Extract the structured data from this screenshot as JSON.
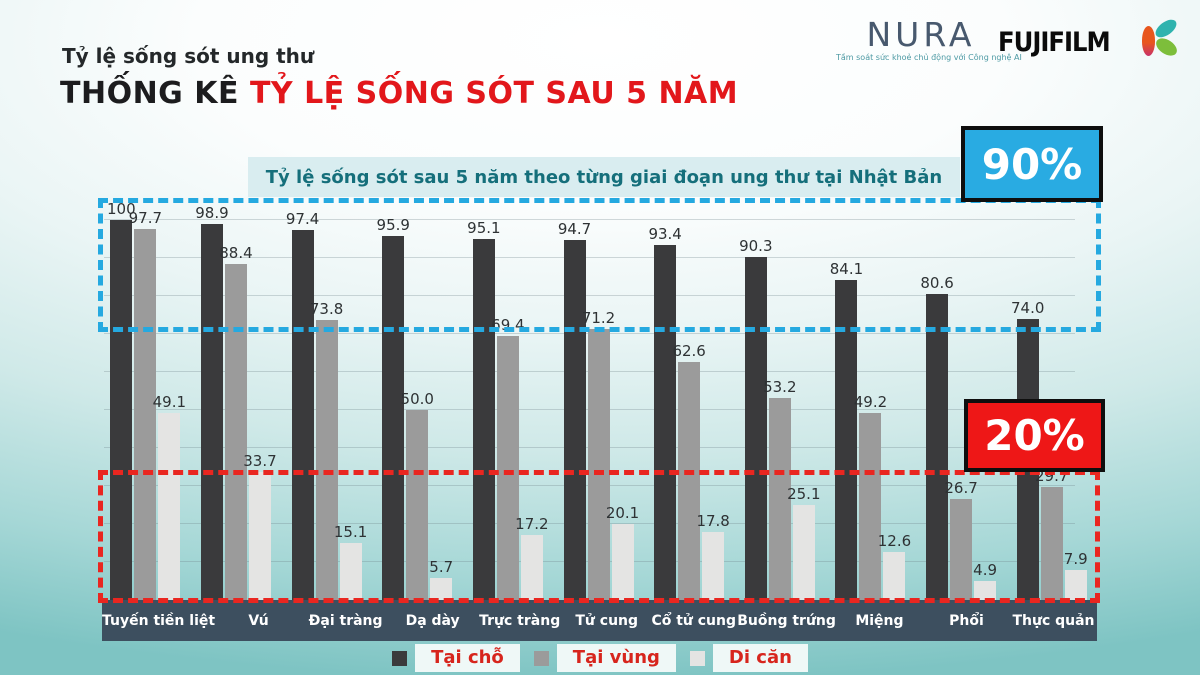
{
  "header": {
    "subtitle": "Tỷ lệ sống sót ung thư",
    "title_prefix": "THỐNG KÊ ",
    "title_highlight": "TỶ LỆ SỐNG SÓT SAU 5 NĂM"
  },
  "logos": {
    "nura": "NURA",
    "nura_tagline": "Tầm soát sức khoẻ chủ động với Công nghệ AI",
    "fujifilm": "FUJIFILM"
  },
  "annotations": {
    "high_label": "90%",
    "high_color": "#29abe2",
    "low_label": "20%",
    "low_color": "#ee1717"
  },
  "chart_data": {
    "type": "bar",
    "title": "Tỷ lệ sống sót sau 5 năm theo từng giai đoạn ung thư tại Nhật Bản",
    "categories": [
      "Tuyến tiền liệt",
      "Vú",
      "Đại tràng",
      "Dạ dày",
      "Trực tràng",
      "Tử cung",
      "Cổ tử cung",
      "Buồng trứng",
      "Miệng",
      "Phổi",
      "Thực quản"
    ],
    "series": [
      {
        "name": "Tại chỗ",
        "color": "#3a3a3c",
        "values": [
          100,
          98.9,
          97.4,
          95.9,
          95.1,
          94.7,
          93.4,
          90.3,
          84.1,
          80.6,
          74.0
        ]
      },
      {
        "name": "Tại vùng",
        "color": "#9b9b9b",
        "values": [
          97.7,
          88.4,
          73.8,
          50.0,
          69.4,
          71.2,
          62.6,
          53.2,
          49.2,
          26.7,
          29.7
        ]
      },
      {
        "name": "Di căn",
        "color": "#e4e4e3",
        "values": [
          49.1,
          33.7,
          15.1,
          5.7,
          17.2,
          20.1,
          17.8,
          25.1,
          12.6,
          4.9,
          7.9
        ]
      }
    ],
    "ylabel": "",
    "xlabel": "",
    "ylim": [
      0,
      100
    ],
    "grid": true,
    "legend_position": "bottom",
    "legend": [
      "Tại chỗ",
      "Tại vùng",
      "Di căn"
    ]
  }
}
